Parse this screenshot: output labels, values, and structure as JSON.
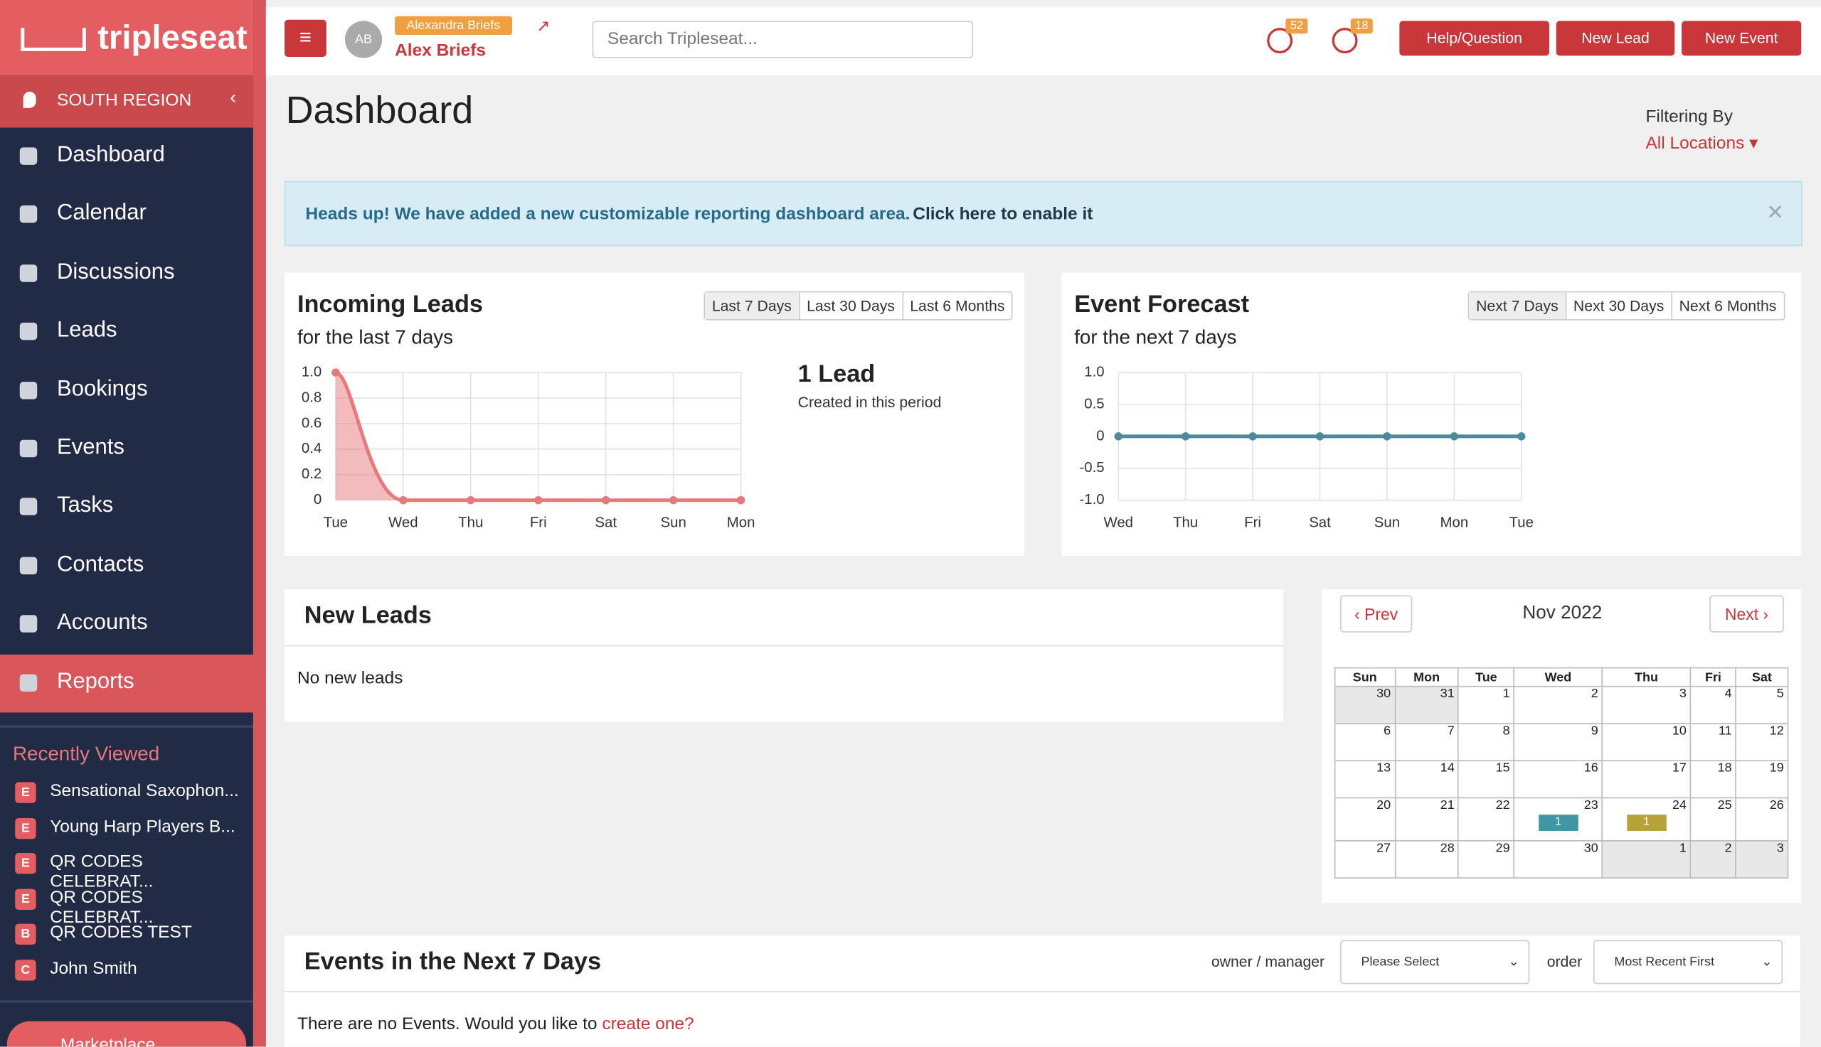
{
  "brand": "tripleseat",
  "region": "SOUTH REGION",
  "nav": [
    "Dashboard",
    "Calendar",
    "Discussions",
    "Leads",
    "Bookings",
    "Events",
    "Tasks",
    "Contacts",
    "Accounts",
    "Reports"
  ],
  "recently_viewed": {
    "title": "Recently Viewed",
    "items": [
      {
        "badge": "E",
        "label": "Sensational Saxophon..."
      },
      {
        "badge": "E",
        "label": "Young Harp Players B..."
      },
      {
        "badge": "E",
        "label": "QR CODES CELEBRAT..."
      },
      {
        "badge": "E",
        "label": "QR CODES CELEBRAT..."
      },
      {
        "badge": "B",
        "label": "QR CODES TEST"
      },
      {
        "badge": "C",
        "label": "John Smith"
      }
    ]
  },
  "marketplace": "Marketplace",
  "header": {
    "avatar": "AB",
    "impersonating": "Alexandra Briefs",
    "user": "Alex Briefs",
    "search_placeholder": "Search Tripleseat...",
    "notification_counts": [
      52,
      18
    ],
    "buttons": [
      "Help/Question",
      "New Lead",
      "New Event"
    ]
  },
  "page_title": "Dashboard",
  "filter": {
    "label": "Filtering By",
    "value": "All Locations"
  },
  "alert": {
    "text": "Heads up! We have added a new customizable reporting dashboard area.",
    "link": "Click here to enable it"
  },
  "incoming_leads": {
    "title": "Incoming Leads",
    "subtitle": "for the last 7 days",
    "ranges": [
      "Last 7 Days",
      "Last 30 Days",
      "Last 6 Months"
    ],
    "summary": "1 Lead",
    "summary_note": "Created in this period",
    "chart_data": {
      "type": "area",
      "categories": [
        "Tue",
        "Wed",
        "Thu",
        "Fri",
        "Sat",
        "Sun",
        "Mon"
      ],
      "values": [
        1,
        0,
        0,
        0,
        0,
        0,
        0
      ],
      "ylim": [
        0,
        1
      ],
      "yticks": [
        0,
        0.2,
        0.4,
        0.6,
        0.8,
        {
          "value": 1,
          "label": "1.0"
        }
      ],
      "color": "#e8787c",
      "grid": true
    }
  },
  "event_forecast": {
    "title": "Event Forecast",
    "subtitle": "for the next 7 days",
    "ranges": [
      "Next 7 Days",
      "Next 30 Days",
      "Next 6 Months"
    ],
    "chart_data": {
      "type": "line",
      "categories": [
        "Wed",
        "Thu",
        "Fri",
        "Sat",
        "Sun",
        "Mon",
        "Tue"
      ],
      "values": [
        0,
        0,
        0,
        0,
        0,
        0,
        0
      ],
      "ylim": [
        -1,
        1
      ],
      "yticks": [
        {
          "value": -1,
          "label": "-1.0"
        },
        -0.5,
        0,
        0.5,
        {
          "value": 1,
          "label": "1.0"
        }
      ],
      "color": "#4a8a9a",
      "grid": true
    }
  },
  "new_leads": {
    "title": "New Leads",
    "empty": "No new leads"
  },
  "calendar": {
    "prev": "Prev",
    "next": "Next",
    "month": "Nov 2022",
    "weekdays": [
      "Sun",
      "Mon",
      "Tue",
      "Wed",
      "Thu",
      "Fri",
      "Sat"
    ],
    "weeks": [
      [
        30,
        31,
        1,
        2,
        3,
        4,
        5
      ],
      [
        6,
        7,
        8,
        9,
        10,
        11,
        12
      ],
      [
        13,
        14,
        15,
        16,
        17,
        18,
        19
      ],
      [
        20,
        21,
        22,
        23,
        24,
        25,
        26
      ],
      [
        27,
        28,
        29,
        30,
        1,
        2,
        3
      ]
    ],
    "events": [
      {
        "date": 23,
        "count": 1,
        "color": "#3f97a6"
      },
      {
        "date": 24,
        "count": 1,
        "color": "#b7a23a"
      }
    ]
  },
  "events_section": {
    "title": "Events in the Next 7 Days",
    "owner_label": "owner / manager",
    "owner_select": "Please Select",
    "order_label": "order",
    "order_select": "Most Recent First",
    "empty": "There are no Events. Would you like to",
    "link": "create one?"
  }
}
